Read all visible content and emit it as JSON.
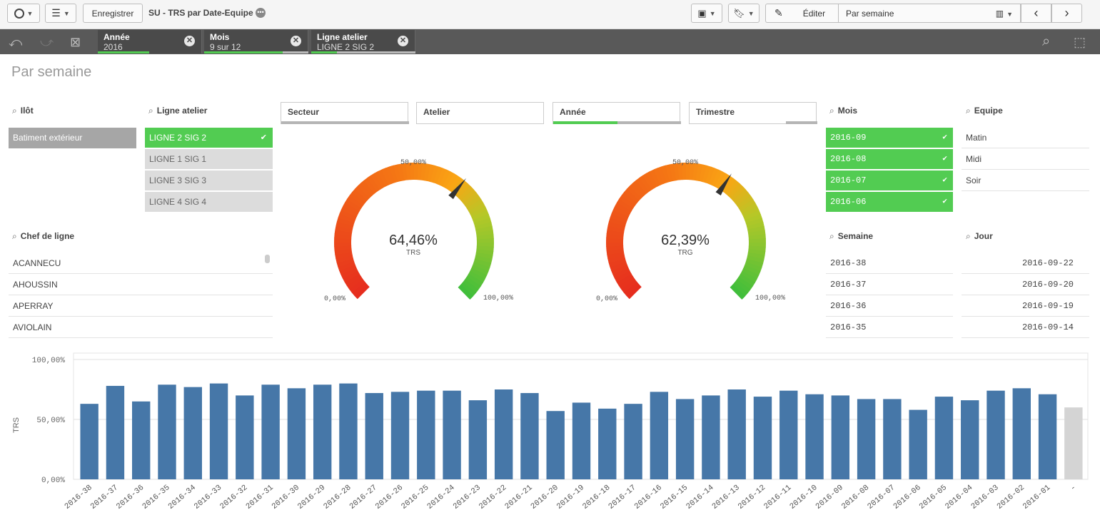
{
  "toolbar": {
    "save_label": "Enregistrer",
    "app_title": "SU - TRS par Date-Equipe",
    "edit_label": "Éditer",
    "sheet_name": "Par semaine"
  },
  "selections": [
    {
      "label": "Année",
      "value": "2016"
    },
    {
      "label": "Mois",
      "value": "9 sur 12"
    },
    {
      "label": "Ligne atelier",
      "value": "LIGNE 2 SIG 2"
    }
  ],
  "sheet_title": "Par semaine",
  "filters": {
    "ilot": {
      "title": "Ilôt",
      "items": [
        "Batiment extérieur"
      ]
    },
    "ligne_atelier": {
      "title": "Ligne atelier",
      "items": [
        "LIGNE 2 SIG 2",
        "LIGNE 1 SIG 1",
        "LIGNE 3 SIG 3",
        "LIGNE 4 SIG 4"
      ]
    },
    "chef_de_ligne": {
      "title": "Chef de ligne",
      "items": [
        "ACANNECU",
        "AHOUSSIN",
        "APERRAY",
        "AVIOLAIN"
      ]
    },
    "mois": {
      "title": "Mois",
      "items": [
        "2016-09",
        "2016-08",
        "2016-07",
        "2016-06"
      ]
    },
    "equipe": {
      "title": "Equipe",
      "items": [
        "Matin",
        "Midi",
        "Soir"
      ]
    },
    "semaine": {
      "title": "Semaine",
      "items": [
        "2016-38",
        "2016-37",
        "2016-36",
        "2016-35"
      ]
    },
    "jour": {
      "title": "Jour",
      "items": [
        "2016-09-22",
        "2016-09-20",
        "2016-09-19",
        "2016-09-14"
      ]
    }
  },
  "dropdowns": {
    "secteur": "Secteur",
    "atelier": "Atelier",
    "annee": "Année",
    "trimestre": "Trimestre"
  },
  "gauges": [
    {
      "value_text": "64,46%",
      "label": "TRS",
      "value": 0.6446,
      "min_label": "0,00%",
      "mid_label": "50,00%",
      "max_label": "100,00%"
    },
    {
      "value_text": "62,39%",
      "label": "TRG",
      "value": 0.6239,
      "min_label": "0,00%",
      "mid_label": "50,00%",
      "max_label": "100,00%"
    }
  ],
  "colors": {
    "selected": "#52cc52",
    "bar": "#4677a8",
    "bar_null": "#d4d4d4",
    "selbar": "#595959"
  },
  "chart_data": {
    "type": "bar",
    "ylabel": "TRS",
    "ylim": [
      0,
      1
    ],
    "yticks": [
      "0,00%",
      "50,00%",
      "100,00%"
    ],
    "categories": [
      "2016-38",
      "2016-37",
      "2016-36",
      "2016-35",
      "2016-34",
      "2016-33",
      "2016-32",
      "2016-31",
      "2016-30",
      "2016-29",
      "2016-28",
      "2016-27",
      "2016-26",
      "2016-25",
      "2016-24",
      "2016-23",
      "2016-22",
      "2016-21",
      "2016-20",
      "2016-19",
      "2016-18",
      "2016-17",
      "2016-16",
      "2016-15",
      "2016-14",
      "2016-13",
      "2016-12",
      "2016-11",
      "2016-10",
      "2016-09",
      "2016-08",
      "2016-07",
      "2016-06",
      "2016-05",
      "2016-04",
      "2016-03",
      "2016-02",
      "2016-01",
      "-"
    ],
    "values": [
      0.63,
      0.78,
      0.65,
      0.79,
      0.77,
      0.8,
      0.7,
      0.79,
      0.76,
      0.79,
      0.8,
      0.72,
      0.73,
      0.74,
      0.74,
      0.66,
      0.75,
      0.72,
      0.57,
      0.64,
      0.59,
      0.63,
      0.73,
      0.67,
      0.7,
      0.75,
      0.69,
      0.74,
      0.71,
      0.7,
      0.67,
      0.67,
      0.58,
      0.69,
      0.66,
      0.74,
      0.76,
      0.71,
      0.6
    ]
  }
}
